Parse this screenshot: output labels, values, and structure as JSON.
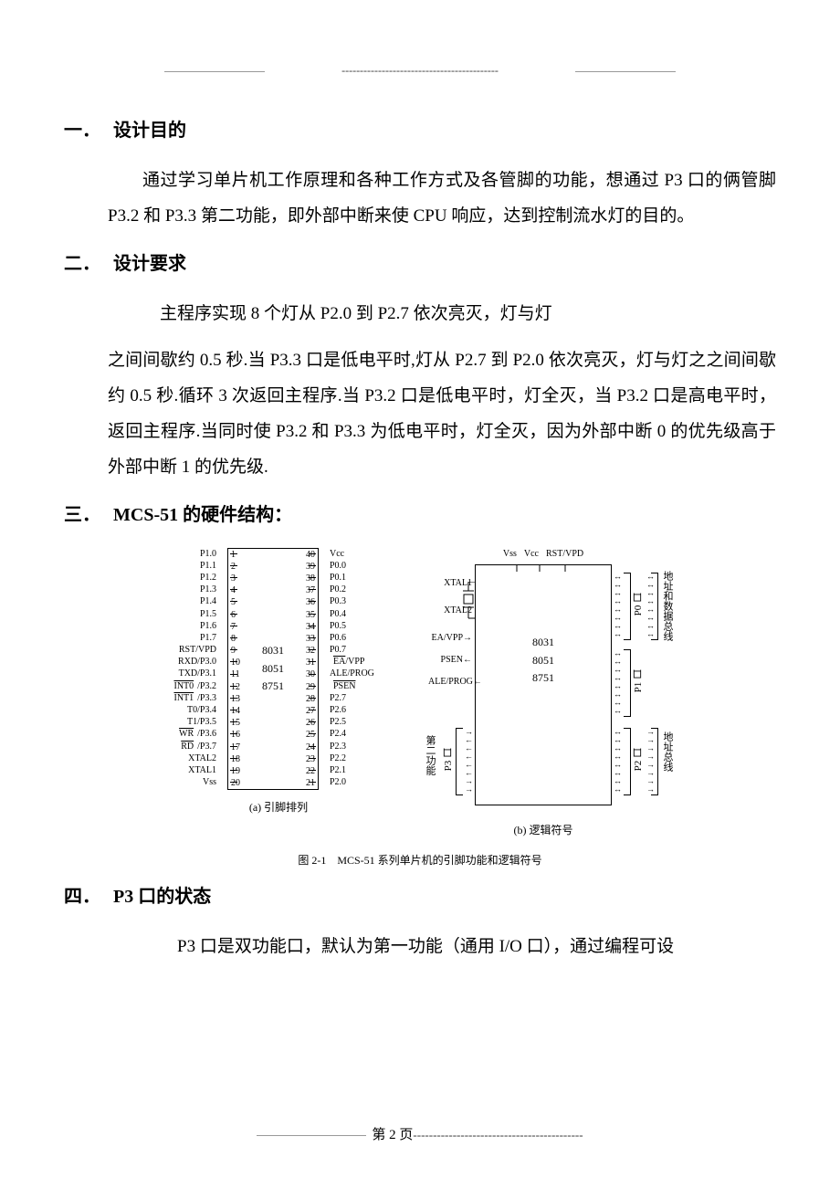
{
  "top_dashes": "-------------------------------------------",
  "sections": {
    "s1": {
      "num": "一．",
      "title": "设计目的"
    },
    "s2": {
      "num": "二．",
      "title": "设计要求"
    },
    "s3": {
      "num": "三．",
      "title": "MCS-51 的硬件结构："
    },
    "s4": {
      "num": "四．",
      "title": "P3 口的状态"
    }
  },
  "paras": {
    "p1": "通过学习单片机工作原理和各种工作方式及各管脚的功能，想通过 P3 口的俩管脚 P3.2 和 P3.3 第二功能，即外部中断来使 CPU 响应，达到控制流水灯的目的。",
    "p2a": "主程序实现 8 个灯从 P2.0 到 P2.7 依次亮灭，灯与灯",
    "p2b": "之间间歇约 0.5 秒.当 P3.3 口是低电平时,灯从 P2.7 到 P2.0 依次亮灭，灯与灯之之间间歇约 0.5 秒.循环 3 次返回主程序.当 P3.2 口是低电平时，灯全灭，当 P3.2 口是高电平时，返回主程序.当同时使 P3.2 和 P3.3 为低电平时，灯全灭，因为外部中断 0 的优先级高于外部中断 1 的优先级.",
    "p4": "P3 口是双功能口，默认为第一功能（通用 I/O 口），通过编程可设"
  },
  "chip": {
    "left_labels": [
      "P1.0",
      "P1.1",
      "P1.2",
      "P1.3",
      "P1.4",
      "P1.5",
      "P1.6",
      "P1.7",
      "RST/VPD",
      "RXD/P3.0",
      "TXD/P3.1",
      "INT0/P3.2",
      "INT1/P3.3",
      "T0/P3.4",
      "T1/P3.5",
      "WR/P3.6",
      "RD/P3.7",
      "XTAL2",
      "XTAL1",
      "Vss"
    ],
    "left_nums": [
      "1",
      "2",
      "3",
      "4",
      "5",
      "6",
      "7",
      "8",
      "9",
      "10",
      "11",
      "12",
      "13",
      "14",
      "15",
      "16",
      "17",
      "18",
      "19",
      "20"
    ],
    "right_nums": [
      "40",
      "39",
      "38",
      "37",
      "36",
      "35",
      "34",
      "33",
      "32",
      "31",
      "30",
      "29",
      "28",
      "27",
      "26",
      "25",
      "24",
      "23",
      "22",
      "21"
    ],
    "right_labels": [
      "Vcc",
      "P0.0",
      "P0.1",
      "P0.2",
      "P0.3",
      "P0.4",
      "P0.5",
      "P0.6",
      "P0.7",
      "EA/VPP",
      "ALE/PROG",
      "PSEN",
      "P2.7",
      "P2.6",
      "P2.5",
      "P2.4",
      "P2.3",
      "P2.2",
      "P2.1",
      "P2.0"
    ],
    "center": [
      "8031",
      "8051",
      "8751"
    ],
    "caption": "(a) 引脚排列"
  },
  "logic": {
    "top": [
      "Vss",
      "Vcc",
      "RST/VPD"
    ],
    "left": [
      "XTAL1",
      "",
      "XTAL2",
      "",
      "EA/VPP→",
      "PSEN←",
      "ALE/PROG←"
    ],
    "center": [
      "8031",
      "8051",
      "8751"
    ],
    "right_ports": [
      "P0 口",
      "P1 口",
      "P2 口"
    ],
    "left_port": "P3 口",
    "left_bracket_label": "第二功能",
    "right_texts": [
      "地址和数据总线",
      "",
      "地址总线"
    ],
    "caption": "(b) 逻辑符号"
  },
  "figure_caption": "图 2-1　MCS-51 系列单片机的引脚功能和逻辑符号",
  "footer": {
    "page_label": "第 2 页",
    "dashes": "-------------------------------------------"
  }
}
